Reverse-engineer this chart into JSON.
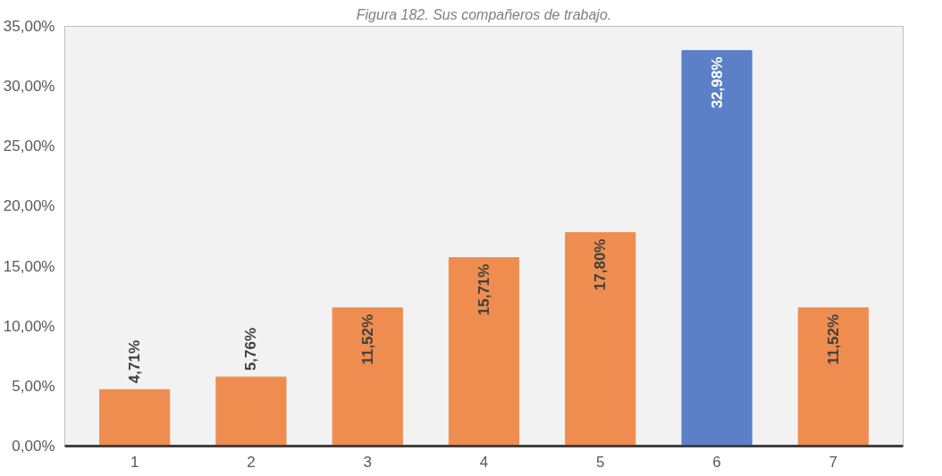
{
  "chart_data": {
    "type": "bar",
    "title": "Figura 182. Sus compañeros de trabajo.",
    "categories": [
      "1",
      "2",
      "3",
      "4",
      "5",
      "6",
      "7"
    ],
    "values": [
      4.71,
      5.76,
      11.52,
      15.71,
      17.8,
      32.98,
      11.52
    ],
    "value_labels": [
      "4,71%",
      "5,76%",
      "11,52%",
      "15,71%",
      "17,80%",
      "32,98%",
      "11,52%"
    ],
    "colors": [
      "#ee8d4f",
      "#ee8d4f",
      "#ee8d4f",
      "#ee8d4f",
      "#ee8d4f",
      "#5b80c8",
      "#ee8d4f"
    ],
    "ylim": [
      0,
      35
    ],
    "yticks": [
      {
        "value": 0,
        "label": "0,00%"
      },
      {
        "value": 5,
        "label": "5,00%"
      },
      {
        "value": 10,
        "label": "10,00%"
      },
      {
        "value": 15,
        "label": "15,00%"
      },
      {
        "value": 20,
        "label": "20,00%"
      },
      {
        "value": 25,
        "label": "25,00%"
      },
      {
        "value": 30,
        "label": "30,00%"
      },
      {
        "value": 35,
        "label": "35,00%"
      }
    ],
    "grid": false
  }
}
